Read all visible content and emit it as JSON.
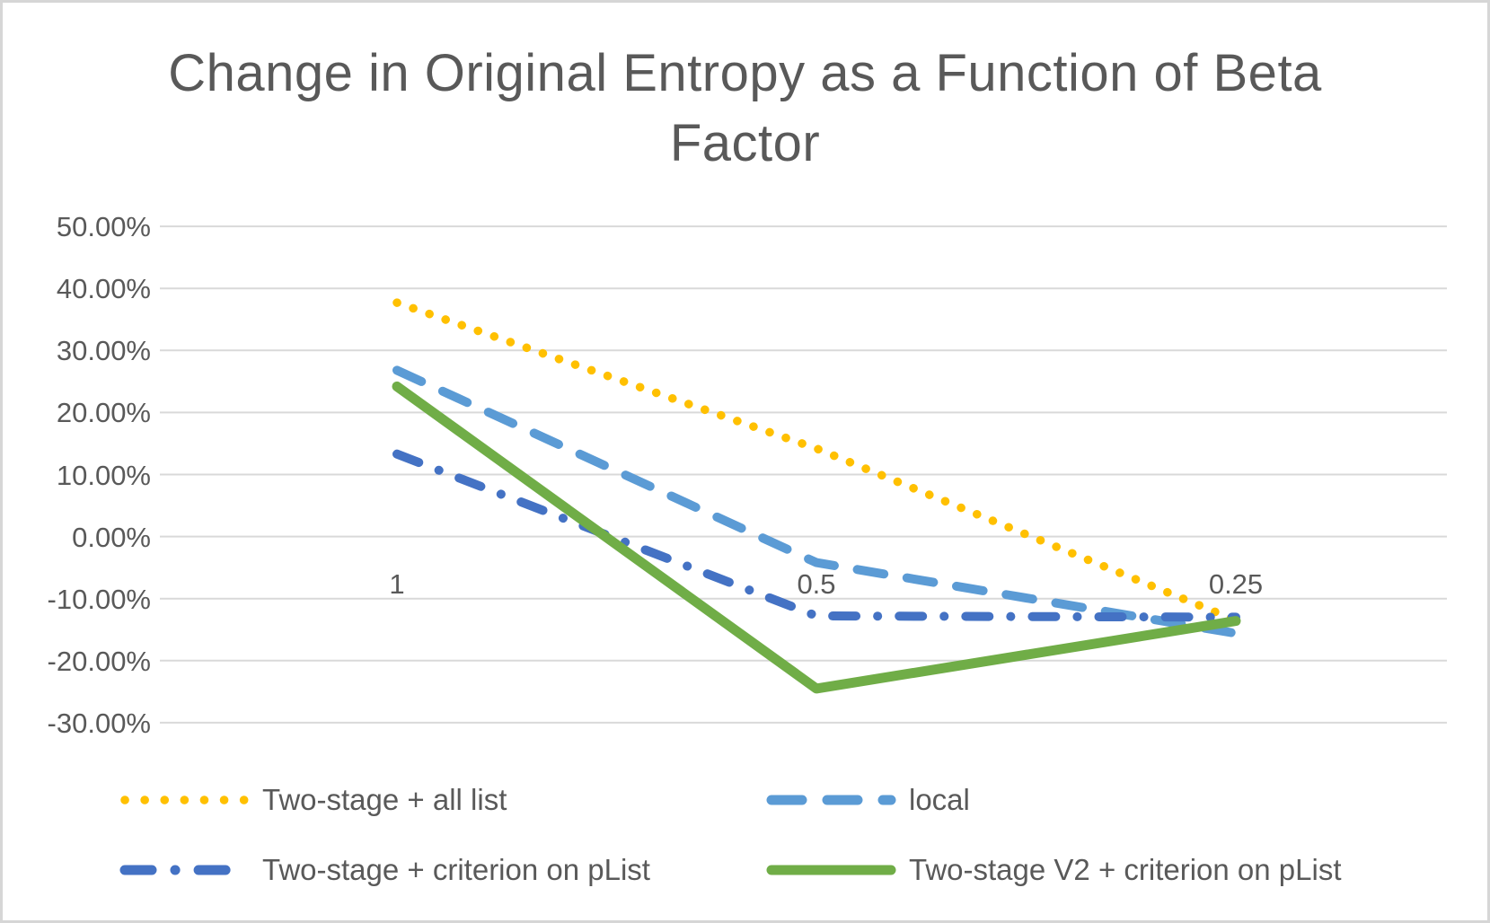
{
  "chart_data": {
    "type": "line",
    "title": "Change in Original Entropy as a Function of Beta Factor",
    "x_axis": {
      "categories": [
        "1",
        "0.5",
        "0.25"
      ]
    },
    "y_axis": {
      "tick_labels": [
        "50.00%",
        "40.00%",
        "30.00%",
        "20.00%",
        "10.00%",
        "0.00%",
        "-10.00%",
        "-20.00%",
        "-30.00%"
      ],
      "tick_values": [
        50,
        40,
        30,
        20,
        10,
        0,
        -10,
        -20,
        -30
      ],
      "range": [
        -30,
        50
      ],
      "unit": "percent"
    },
    "grid": true,
    "legend_position": "bottom",
    "series": [
      {
        "name": "Two-stage + all list",
        "color": "#FFC000",
        "line_style": "dotted",
        "values_pct": [
          37.7,
          14.2,
          -13.5
        ]
      },
      {
        "name": "local",
        "color": "#5B9BD5",
        "line_style": "dashed",
        "values_pct": [
          26.8,
          -4.2,
          -15.6
        ]
      },
      {
        "name": "Two-stage + criterion on pList",
        "color": "#4472C4",
        "line_style": "dash-dot",
        "values_pct": [
          13.3,
          -12.8,
          -13.0
        ]
      },
      {
        "name": "Two-stage V2 + criterion on pList",
        "color": "#70AD47",
        "line_style": "solid",
        "values_pct": [
          24.2,
          -24.5,
          -13.6
        ]
      }
    ],
    "text_color": "#595959",
    "gridline_color": "#D9D9D9"
  }
}
